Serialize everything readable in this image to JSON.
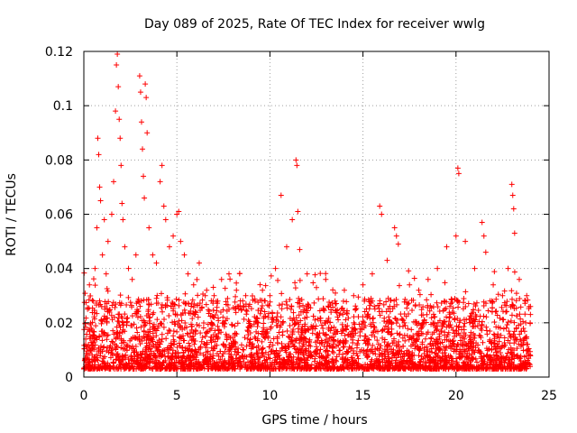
{
  "chart_data": {
    "type": "scatter",
    "title": "Day 089 of 2025, Rate Of TEC Index for receiver wwlg",
    "xlabel": "GPS time / hours",
    "ylabel": "ROTI / TECUs",
    "xlim": [
      0,
      25
    ],
    "ylim": [
      0,
      0.12
    ],
    "xticks": [
      0,
      5,
      10,
      15,
      20,
      25
    ],
    "xtick_labels": [
      "0",
      "5",
      "10",
      "15",
      "20",
      "25"
    ],
    "yticks": [
      0,
      0.02,
      0.04,
      0.06,
      0.08,
      0.1,
      0.12
    ],
    "ytick_labels": [
      "0",
      "0.02",
      "0.04",
      "0.06",
      "0.08",
      "0.1",
      "0.12"
    ],
    "grid": true,
    "marker": "+",
    "color": "#ff0000",
    "series": [
      {
        "name": "ROTI",
        "points": [
          [
            0.1,
            0.012
          ],
          [
            0.2,
            0.025
          ],
          [
            0.3,
            0.034
          ],
          [
            0.4,
            0.018
          ],
          [
            0.5,
            0.028
          ],
          [
            0.6,
            0.04
          ],
          [
            0.7,
            0.055
          ],
          [
            0.75,
            0.088
          ],
          [
            0.8,
            0.082
          ],
          [
            0.85,
            0.07
          ],
          [
            0.9,
            0.065
          ],
          [
            1.0,
            0.045
          ],
          [
            1.1,
            0.058
          ],
          [
            1.2,
            0.038
          ],
          [
            1.3,
            0.05
          ],
          [
            1.5,
            0.06
          ],
          [
            1.6,
            0.072
          ],
          [
            1.7,
            0.098
          ],
          [
            1.75,
            0.115
          ],
          [
            1.8,
            0.119
          ],
          [
            1.85,
            0.107
          ],
          [
            1.9,
            0.095
          ],
          [
            1.95,
            0.088
          ],
          [
            2.0,
            0.078
          ],
          [
            2.05,
            0.064
          ],
          [
            2.1,
            0.058
          ],
          [
            2.2,
            0.048
          ],
          [
            2.4,
            0.04
          ],
          [
            2.6,
            0.036
          ],
          [
            2.8,
            0.045
          ],
          [
            3.0,
            0.111
          ],
          [
            3.05,
            0.105
          ],
          [
            3.1,
            0.094
          ],
          [
            3.15,
            0.084
          ],
          [
            3.2,
            0.074
          ],
          [
            3.25,
            0.066
          ],
          [
            3.3,
            0.108
          ],
          [
            3.35,
            0.103
          ],
          [
            3.4,
            0.09
          ],
          [
            3.5,
            0.055
          ],
          [
            3.7,
            0.045
          ],
          [
            3.9,
            0.042
          ],
          [
            4.1,
            0.072
          ],
          [
            4.2,
            0.078
          ],
          [
            4.3,
            0.063
          ],
          [
            4.4,
            0.058
          ],
          [
            4.6,
            0.048
          ],
          [
            4.8,
            0.052
          ],
          [
            5.0,
            0.06
          ],
          [
            5.1,
            0.061
          ],
          [
            5.2,
            0.05
          ],
          [
            5.4,
            0.045
          ],
          [
            5.6,
            0.038
          ],
          [
            5.9,
            0.034
          ],
          [
            6.2,
            0.042
          ],
          [
            6.6,
            0.032
          ],
          [
            7.0,
            0.03
          ],
          [
            7.4,
            0.036
          ],
          [
            7.8,
            0.038
          ],
          [
            8.2,
            0.032
          ],
          [
            8.7,
            0.03
          ],
          [
            9.2,
            0.028
          ],
          [
            9.6,
            0.032
          ],
          [
            10.0,
            0.03
          ],
          [
            10.3,
            0.04
          ],
          [
            10.6,
            0.067
          ],
          [
            10.9,
            0.048
          ],
          [
            11.2,
            0.058
          ],
          [
            11.4,
            0.08
          ],
          [
            11.45,
            0.078
          ],
          [
            11.5,
            0.061
          ],
          [
            11.6,
            0.047
          ],
          [
            12.0,
            0.038
          ],
          [
            12.5,
            0.033
          ],
          [
            13.0,
            0.036
          ],
          [
            13.5,
            0.028
          ],
          [
            14.0,
            0.032
          ],
          [
            14.5,
            0.03
          ],
          [
            15.0,
            0.034
          ],
          [
            15.5,
            0.038
          ],
          [
            15.9,
            0.063
          ],
          [
            16.0,
            0.06
          ],
          [
            16.3,
            0.043
          ],
          [
            16.7,
            0.055
          ],
          [
            16.8,
            0.052
          ],
          [
            16.9,
            0.049
          ],
          [
            17.5,
            0.034
          ],
          [
            18.0,
            0.032
          ],
          [
            18.5,
            0.036
          ],
          [
            19.0,
            0.04
          ],
          [
            19.5,
            0.048
          ],
          [
            20.0,
            0.052
          ],
          [
            20.1,
            0.077
          ],
          [
            20.15,
            0.075
          ],
          [
            20.5,
            0.05
          ],
          [
            21.0,
            0.04
          ],
          [
            21.4,
            0.057
          ],
          [
            21.5,
            0.052
          ],
          [
            21.6,
            0.046
          ],
          [
            22.0,
            0.034
          ],
          [
            22.5,
            0.03
          ],
          [
            22.8,
            0.04
          ],
          [
            23.0,
            0.071
          ],
          [
            23.05,
            0.067
          ],
          [
            23.1,
            0.062
          ],
          [
            23.15,
            0.053
          ],
          [
            23.4,
            0.036
          ],
          [
            23.8,
            0.03
          ],
          [
            24.0,
            0.026
          ]
        ]
      }
    ]
  }
}
